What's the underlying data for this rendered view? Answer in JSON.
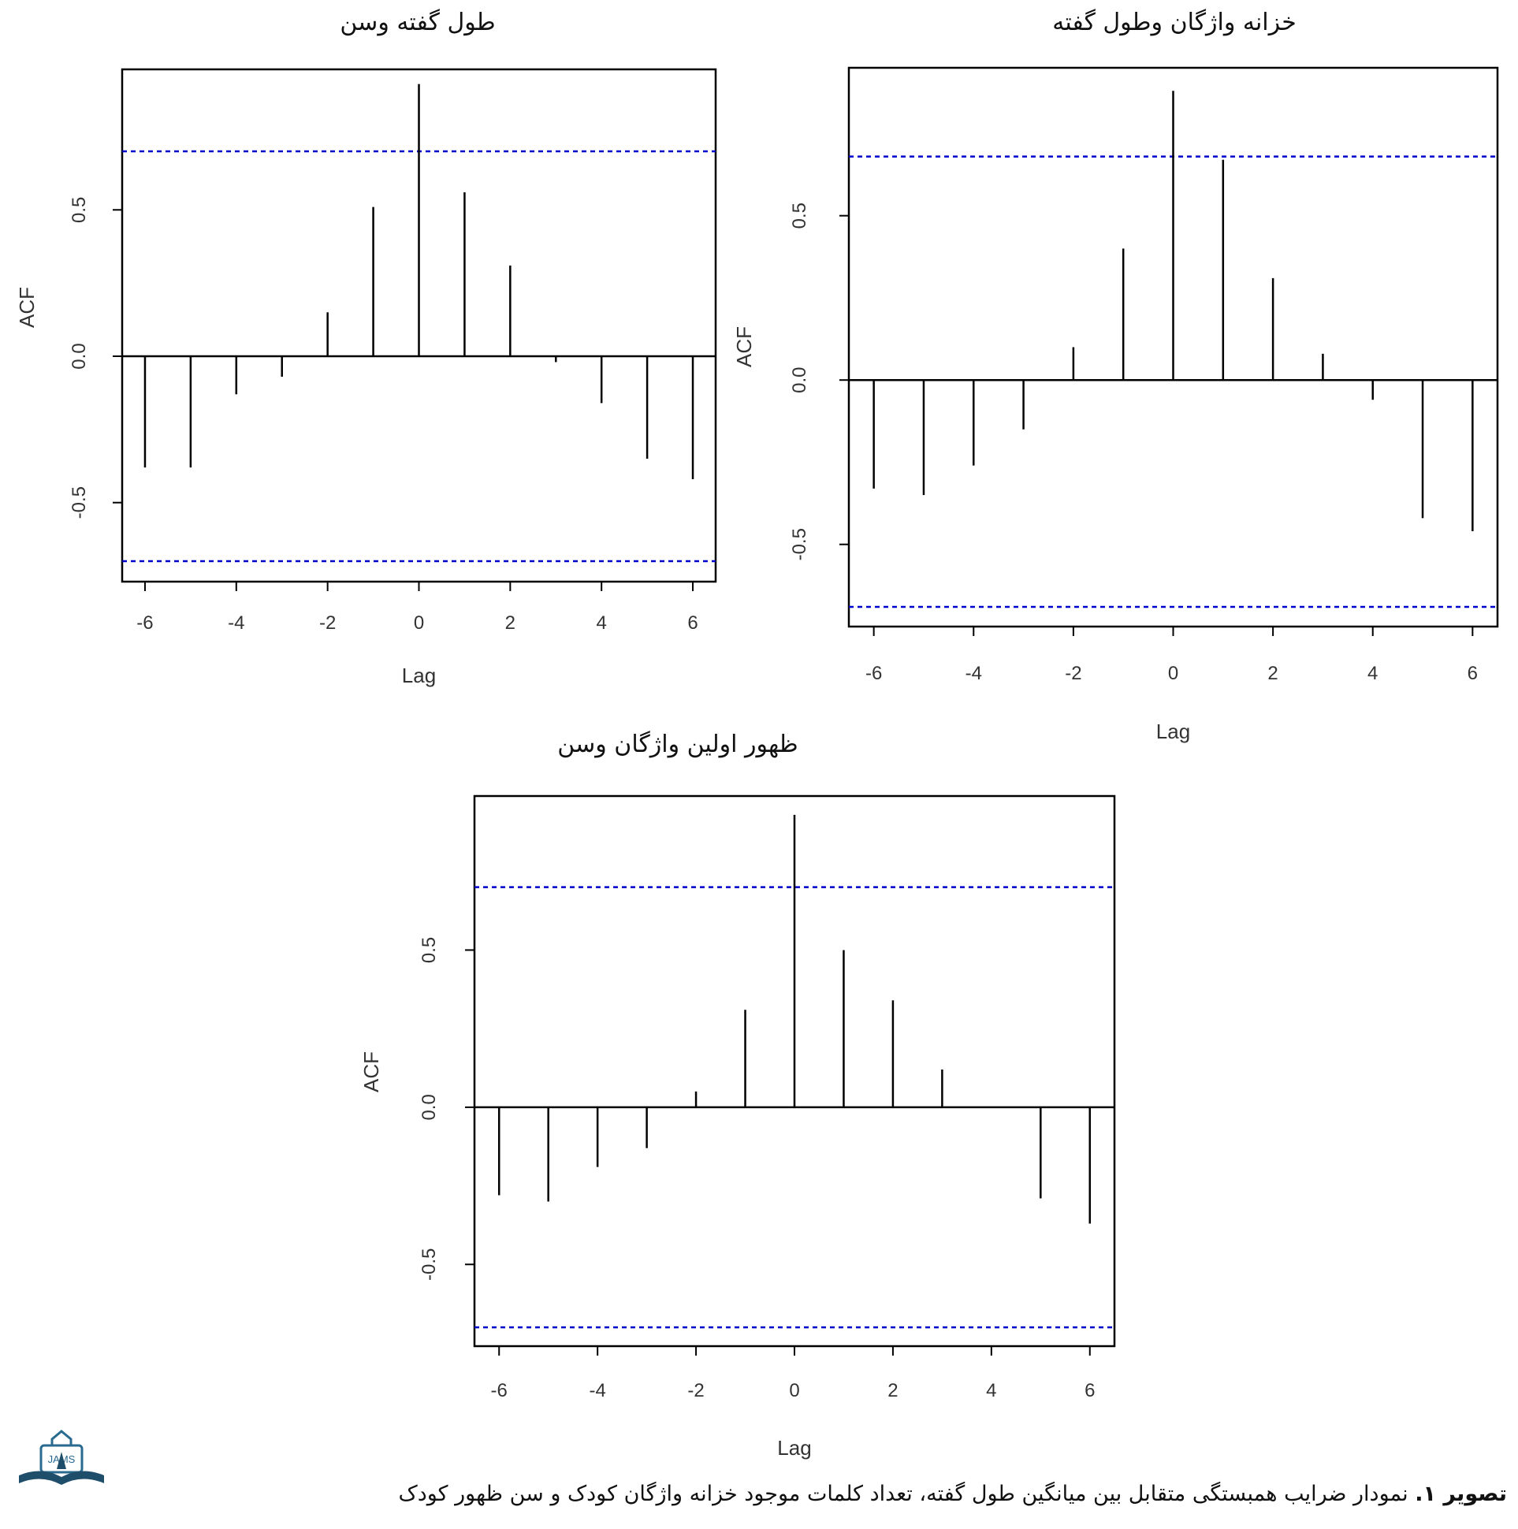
{
  "chart_data": [
    {
      "type": "bar",
      "title": "طول گفته وسن",
      "xlabel": "Lag",
      "ylabel": "ACF",
      "xlim": [
        -6.5,
        6.5
      ],
      "ylim": [
        -0.77,
        0.98
      ],
      "xticks": [
        -6,
        -4,
        -2,
        0,
        2,
        4,
        6
      ],
      "yticks": [
        -0.5,
        0.0,
        0.5
      ],
      "ci": [
        0.7,
        -0.7
      ],
      "x": [
        -6,
        -5,
        -4,
        -3,
        -2,
        -1,
        0,
        1,
        2,
        3,
        4,
        5,
        6
      ],
      "values": [
        -0.38,
        -0.38,
        -0.13,
        -0.07,
        0.15,
        0.51,
        0.93,
        0.56,
        0.31,
        -0.02,
        -0.16,
        -0.35,
        -0.42
      ]
    },
    {
      "type": "bar",
      "title": "خزانه واژگان وطول گفته",
      "xlabel": "Lag",
      "ylabel": "ACF",
      "xlim": [
        -6.5,
        6.5
      ],
      "ylim": [
        -0.75,
        0.95
      ],
      "xticks": [
        -6,
        -4,
        -2,
        0,
        2,
        4,
        6
      ],
      "yticks": [
        -0.5,
        0.0,
        0.5
      ],
      "ci": [
        0.68,
        -0.69
      ],
      "x": [
        -6,
        -5,
        -4,
        -3,
        -2,
        -1,
        0,
        1,
        2,
        3,
        4,
        5,
        6
      ],
      "values": [
        -0.33,
        -0.35,
        -0.26,
        -0.15,
        0.1,
        0.4,
        0.88,
        0.67,
        0.31,
        0.08,
        -0.06,
        -0.42,
        -0.46
      ]
    },
    {
      "type": "bar",
      "title": "ظهور اولين واژگان وسن",
      "xlabel": "Lag",
      "ylabel": "ACF",
      "xlim": [
        -6.5,
        6.5
      ],
      "ylim": [
        -0.76,
        0.99
      ],
      "xticks": [
        -6,
        -4,
        -2,
        0,
        2,
        4,
        6
      ],
      "yticks": [
        -0.5,
        0.0,
        0.5
      ],
      "ci": [
        0.7,
        -0.7
      ],
      "x": [
        -6,
        -5,
        -4,
        -3,
        -2,
        -1,
        0,
        1,
        2,
        3,
        4,
        5,
        6
      ],
      "values": [
        -0.28,
        -0.3,
        -0.19,
        -0.13,
        0.05,
        0.31,
        0.93,
        0.5,
        0.34,
        0.12,
        0.0,
        -0.29,
        -0.37
      ]
    }
  ],
  "caption": {
    "label": "تصویر ۱.",
    "text": " نمودار ضرایب همبستگی متقابل بین میانگین طول گفته، تعداد کلمات موجود خزانه واژگان کودک و سن ظهور کودک"
  },
  "logo": {
    "text": "JAMS"
  },
  "colors": {
    "ci_line": "#0000cc",
    "stem": "#000000",
    "logo": "#2a6a8f"
  }
}
